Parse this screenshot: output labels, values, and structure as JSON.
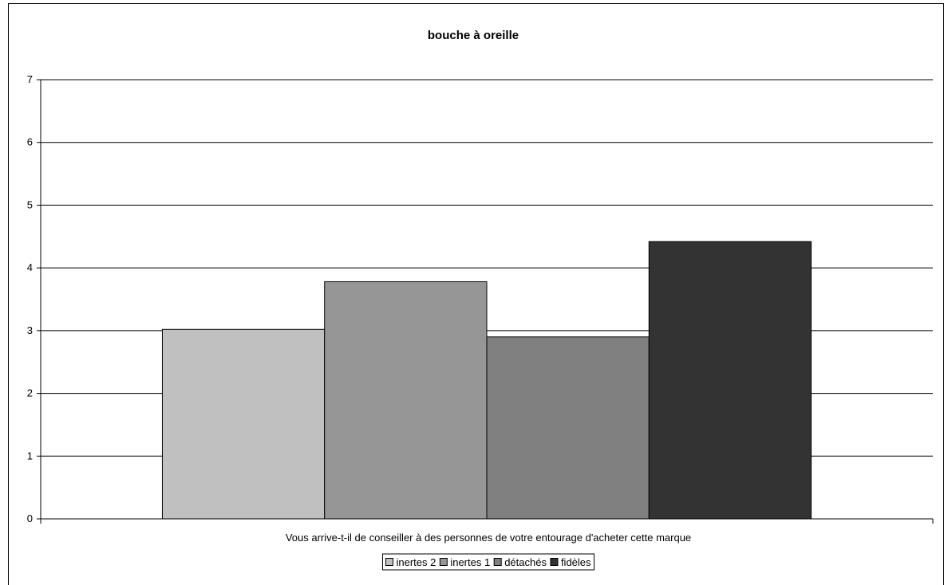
{
  "chart_data": {
    "type": "bar",
    "title": "bouche à oreille",
    "categories": [
      "Vous arrive-t-il de conseiller à des personnes de votre entourage d'acheter cette marque"
    ],
    "series": [
      {
        "name": "inertes 2",
        "values": [
          3.02
        ],
        "color": "#c0c0c0"
      },
      {
        "name": "inertes 1",
        "values": [
          3.78
        ],
        "color": "#969696"
      },
      {
        "name": "détachés",
        "values": [
          2.9
        ],
        "color": "#808080"
      },
      {
        "name": "fidèles",
        "values": [
          4.42
        ],
        "color": "#333333"
      }
    ],
    "ylim": [
      0,
      7
    ],
    "yticks": [
      "0",
      "1",
      "2",
      "3",
      "4",
      "5",
      "6",
      "7"
    ],
    "grid": true,
    "legend_position": "bottom"
  }
}
